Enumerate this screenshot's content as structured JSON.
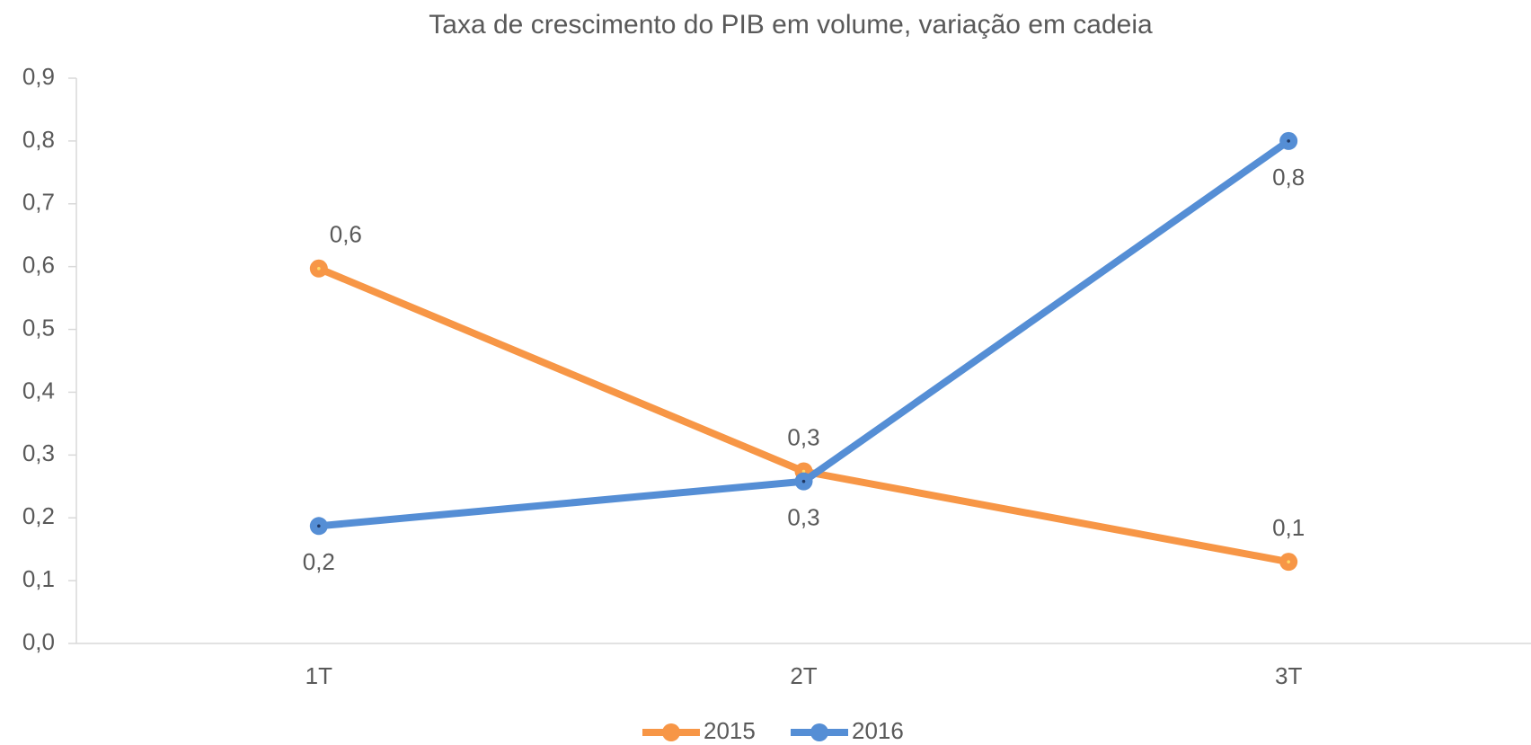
{
  "chart_data": {
    "type": "line",
    "title": "Taxa de crescimento do PIB em volume, variação em cadeia",
    "categories": [
      "1T",
      "2T",
      "3T"
    ],
    "series": [
      {
        "name": "2015",
        "color": "#f79646",
        "values": [
          0.597,
          0.274,
          0.13
        ],
        "value_labels": [
          "0,6",
          "0,3",
          "0,1"
        ]
      },
      {
        "name": "2016",
        "color": "#558ed5",
        "values": [
          0.187,
          0.258,
          0.8
        ],
        "value_labels": [
          "0,2",
          "0,3",
          "0,8"
        ]
      }
    ],
    "ylim": [
      0,
      0.9
    ],
    "yticks": [
      {
        "value": 0,
        "label": "0,0"
      },
      {
        "value": 0.1,
        "label": "0,1"
      },
      {
        "value": 0.2,
        "label": "0,2"
      },
      {
        "value": 0.3,
        "label": "0,3"
      },
      {
        "value": 0.4,
        "label": "0,4"
      },
      {
        "value": 0.5,
        "label": "0,5"
      },
      {
        "value": 0.6,
        "label": "0,6"
      },
      {
        "value": 0.7,
        "label": "0,7"
      },
      {
        "value": 0.8,
        "label": "0,8"
      },
      {
        "value": 0.9,
        "label": "0,9"
      }
    ],
    "grid": false,
    "legend": "bottom"
  }
}
